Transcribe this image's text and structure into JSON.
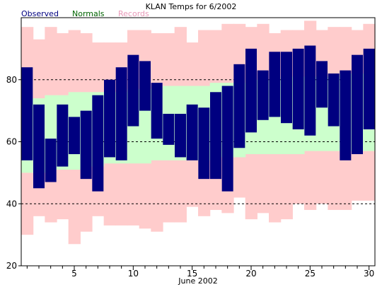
{
  "chart_data": {
    "type": "bar",
    "title": "KLAN Temps for 6/2002",
    "xlabel": "June 2002",
    "ylabel": "",
    "legend": [
      {
        "name": "Observed",
        "color": "#000080"
      },
      {
        "name": "Normals",
        "color": "#006400"
      },
      {
        "name": "Records",
        "color": "#e899b8"
      }
    ],
    "x": [
      1,
      2,
      3,
      4,
      5,
      6,
      7,
      8,
      9,
      10,
      11,
      12,
      13,
      14,
      15,
      16,
      17,
      18,
      19,
      20,
      21,
      22,
      23,
      24,
      25,
      26,
      27,
      28,
      29,
      30
    ],
    "x_ticks": [
      5,
      10,
      15,
      20,
      25,
      30
    ],
    "y_ticks": [
      20,
      40,
      60,
      80
    ],
    "ylim": [
      20,
      100
    ],
    "gridlines_y": [
      40,
      60,
      80
    ],
    "series": [
      {
        "name": "Records",
        "color": "#ffcccc",
        "high": [
          97,
          93,
          97,
          95,
          96,
          95,
          92,
          92,
          92,
          96,
          96,
          95,
          95,
          97,
          92,
          96,
          96,
          98,
          98,
          97,
          98,
          95,
          96,
          96,
          99,
          96,
          97,
          97,
          96,
          98
        ],
        "low": [
          30,
          36,
          34,
          35,
          27,
          31,
          36,
          33,
          33,
          33,
          32,
          31,
          34,
          34,
          39,
          36,
          38,
          37,
          42,
          35,
          37,
          34,
          35,
          40,
          38,
          40,
          38,
          38,
          41,
          41
        ]
      },
      {
        "name": "Normals",
        "color": "#ccffcc",
        "high": [
          74,
          74,
          75,
          75,
          76,
          76,
          76,
          76,
          76,
          77,
          77,
          77,
          78,
          78,
          78,
          78,
          79,
          79,
          79,
          80,
          80,
          80,
          81,
          81,
          81,
          81,
          81,
          82,
          82,
          82
        ],
        "low": [
          50,
          50,
          51,
          51,
          51,
          52,
          52,
          53,
          53,
          53,
          53,
          54,
          54,
          54,
          54,
          54,
          55,
          55,
          55,
          56,
          56,
          56,
          56,
          56,
          57,
          57,
          57,
          57,
          57,
          57
        ]
      },
      {
        "name": "Observed",
        "color": "#000080",
        "high": [
          84,
          72,
          61,
          72,
          68,
          70,
          75,
          80,
          84,
          88,
          86,
          79,
          69,
          69,
          72,
          71,
          76,
          78,
          85,
          90,
          83,
          89,
          89,
          90,
          91,
          86,
          82,
          83,
          88,
          90
        ],
        "low": [
          54,
          45,
          47,
          52,
          56,
          48,
          44,
          55,
          54,
          65,
          70,
          61,
          59,
          55,
          54,
          48,
          48,
          44,
          58,
          63,
          67,
          68,
          66,
          64,
          62,
          71,
          65,
          54,
          56,
          64
        ]
      }
    ]
  }
}
